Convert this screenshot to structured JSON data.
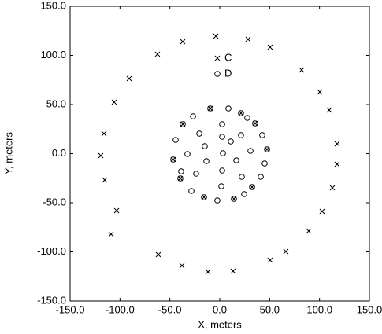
{
  "chart_data": {
    "type": "scatter",
    "x_label": "X, meters",
    "y_label": "Y, meters",
    "xlim": [
      -150,
      150
    ],
    "ylim": [
      -150,
      150
    ],
    "xticks": [
      {
        "value": -150,
        "label": "-150.0"
      },
      {
        "value": -100,
        "label": "-100.0"
      },
      {
        "value": -50,
        "label": "-50.0"
      },
      {
        "value": 0,
        "label": "0.0"
      },
      {
        "value": 50,
        "label": "50.0"
      },
      {
        "value": 100,
        "label": "100.0"
      },
      {
        "value": 150,
        "label": "150.0"
      }
    ],
    "yticks": [
      {
        "value": -150,
        "label": "-150.0"
      },
      {
        "value": -100,
        "label": "-100.0"
      },
      {
        "value": -50,
        "label": "-50.0"
      },
      {
        "value": 0,
        "label": "0.0"
      },
      {
        "value": 50,
        "label": "50.0"
      },
      {
        "value": 100,
        "label": "100.0"
      },
      {
        "value": 150,
        "label": "150.0"
      }
    ],
    "grid": false,
    "legend": "top-center",
    "series": [
      {
        "name": "C",
        "marker": "x",
        "color": "#000000",
        "x": [
          -3.9,
          28.4,
          50.5,
          -37.1,
          -62.4,
          -90.8,
          -105.8,
          82.1,
          100.3,
          109.7,
          -116,
          -119.2,
          -115.3,
          117.6,
          117.6,
          112.9,
          -103.4,
          102.6,
          -108.9,
          89.2,
          66.3,
          50.5,
          -61.6,
          -37.9,
          -11.8,
          13.4,
          -9.5,
          21.3,
          -37.1,
          35.5,
          -46.6,
          47.4,
          -39.5,
          32.4,
          -15.8,
          14.2
        ],
        "values": [
          119.6,
          116.4,
          108.4,
          114,
          101.2,
          76.4,
          52.4,
          85.2,
          62.8,
          44.4,
          20.4,
          -2,
          -26.8,
          10,
          -10.8,
          -34.8,
          -58,
          -58.8,
          -82,
          -78.8,
          -99.6,
          -108.4,
          -102.8,
          -114,
          -120.4,
          -119.6,
          46,
          41.2,
          30,
          30.8,
          -6,
          4.4,
          -25.2,
          -34,
          -44.4,
          -46
        ]
      },
      {
        "name": "D",
        "marker": "circle",
        "color": "#000000",
        "x": [
          8.7,
          -26.8,
          2.4,
          27.6,
          -20.5,
          21.3,
          -44.2,
          2.4,
          42.6,
          -15,
          11.1,
          30.8,
          -32.4,
          3.2,
          -13.4,
          16.6,
          45,
          -23.7,
          2.4,
          22.1,
          41.1,
          -38.7,
          1.6,
          24.5,
          -28.4,
          -2.4,
          -9.5,
          21.3,
          -37.1,
          35.5,
          -46.6,
          47.4,
          -39.5,
          32.4,
          -15.8,
          14.2
        ],
        "values": [
          46,
          38,
          30,
          36.4,
          20.4,
          18.8,
          14,
          17.2,
          18.8,
          7.6,
          12.4,
          2.8,
          -0.4,
          0.4,
          -7.6,
          -6.8,
          -10,
          -20.4,
          -17.2,
          -23.6,
          -23.6,
          -18,
          -33.2,
          -41.2,
          -38,
          -47.6,
          46,
          41.2,
          30,
          30.8,
          -6,
          4.4,
          -25.2,
          -34,
          -44.4,
          -46
        ]
      }
    ]
  }
}
